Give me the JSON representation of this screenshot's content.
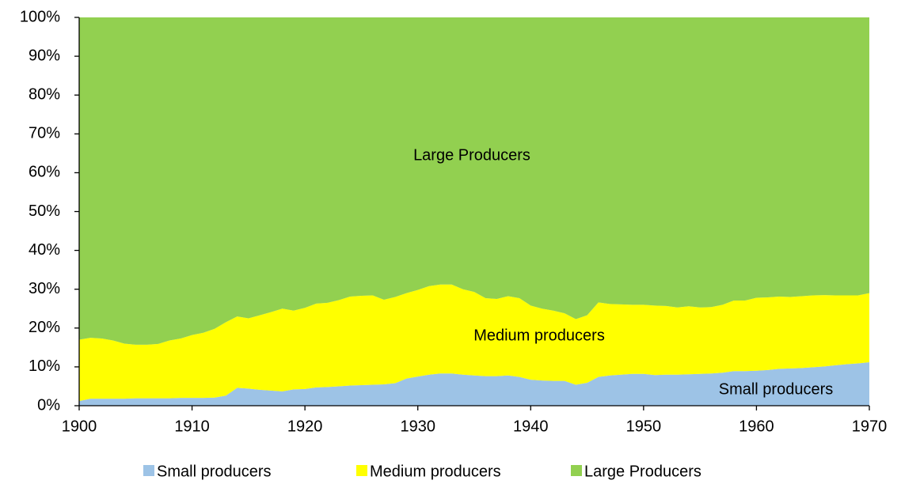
{
  "chart_data": {
    "type": "stacked_area",
    "x": [
      1900,
      1901,
      1902,
      1903,
      1904,
      1905,
      1906,
      1907,
      1908,
      1909,
      1910,
      1911,
      1912,
      1913,
      1914,
      1915,
      1916,
      1917,
      1918,
      1919,
      1920,
      1921,
      1922,
      1923,
      1924,
      1925,
      1926,
      1927,
      1928,
      1929,
      1930,
      1931,
      1932,
      1933,
      1934,
      1935,
      1936,
      1937,
      1938,
      1939,
      1940,
      1941,
      1942,
      1943,
      1944,
      1945,
      1946,
      1947,
      1948,
      1949,
      1950,
      1951,
      1952,
      1953,
      1954,
      1955,
      1956,
      1957,
      1958,
      1959,
      1960,
      1961,
      1962,
      1963,
      1964,
      1965,
      1966,
      1967,
      1968,
      1969,
      1970
    ],
    "series": [
      {
        "name": "Small producers",
        "color": "#9dc3e6",
        "values": [
          1.2,
          1.8,
          1.8,
          1.8,
          1.8,
          1.9,
          1.9,
          1.9,
          1.9,
          2,
          2,
          2,
          2.1,
          2.6,
          4.6,
          4.4,
          4.1,
          3.9,
          3.7,
          4.2,
          4.3,
          4.7,
          4.8,
          5,
          5.2,
          5.3,
          5.4,
          5.5,
          5.8,
          7,
          7.5,
          8,
          8.3,
          8.3,
          8,
          7.8,
          7.6,
          7.6,
          7.8,
          7.4,
          6.7,
          6.5,
          6.4,
          6.4,
          5.4,
          5.9,
          7.4,
          7.8,
          8,
          8.2,
          8.2,
          7.9,
          8,
          8,
          8.1,
          8.2,
          8.3,
          8.5,
          8.9,
          8.9,
          9,
          9.2,
          9.5,
          9.6,
          9.7,
          9.9,
          10.1,
          10.4,
          10.7,
          10.9,
          11.2
        ]
      },
      {
        "name": "Medium producers",
        "color": "#ffff00",
        "values": [
          15.8,
          15.7,
          15.5,
          15.0,
          14.2,
          13.8,
          13.8,
          14.0,
          14.9,
          15.3,
          16.2,
          16.8,
          17.7,
          18.9,
          18.4,
          18.1,
          19.2,
          20.2,
          21.3,
          20.3,
          20.9,
          21.6,
          21.7,
          22.2,
          22.9,
          23.0,
          23.0,
          21.8,
          22.2,
          22.0,
          22.3,
          22.8,
          22.9,
          22.9,
          22.0,
          21.5,
          20.1,
          19.9,
          20.4,
          20.3,
          19.1,
          18.5,
          18.1,
          17.4,
          16.9,
          17.4,
          19.2,
          18.4,
          18.1,
          17.8,
          17.8,
          17.9,
          17.7,
          17.3,
          17.5,
          17.1,
          17.1,
          17.5,
          18.2,
          18.2,
          18.8,
          18.7,
          18.6,
          18.4,
          18.5,
          18.5,
          18.4,
          18.0,
          17.7,
          17.5,
          17.8
        ]
      },
      {
        "name": "Large Producers",
        "color": "#92d050",
        "values": [
          83,
          82.5,
          82.7,
          83.2,
          84,
          84.3,
          84.3,
          84.1,
          83.2,
          82.7,
          81.8,
          81.2,
          80.2,
          78.5,
          77,
          77.5,
          76.7,
          75.9,
          75,
          75.5,
          74.8,
          73.7,
          73.5,
          72.8,
          71.9,
          71.7,
          71.6,
          72.7,
          72,
          71,
          70.2,
          69.2,
          68.8,
          68.8,
          70,
          70.7,
          72.3,
          72.5,
          71.8,
          72.3,
          74.2,
          75,
          75.5,
          76.2,
          77.7,
          76.7,
          73.4,
          73.8,
          73.9,
          74,
          74,
          74.2,
          74.3,
          74.7,
          74.4,
          74.7,
          74.6,
          74,
          72.9,
          72.9,
          72.2,
          72.1,
          71.9,
          72,
          71.8,
          71.6,
          71.5,
          71.6,
          71.6,
          71.6,
          71
        ]
      }
    ],
    "annotations": [
      "Large Producers",
      "Medium producers",
      "Small producers"
    ],
    "xlim": [
      1900,
      1970
    ],
    "xticks": [
      1900,
      1910,
      1920,
      1930,
      1940,
      1950,
      1960,
      1970
    ],
    "ylim": [
      0,
      100
    ],
    "yticks": [
      {
        "value": 0,
        "label": "0%"
      },
      {
        "value": 10,
        "label": "10%"
      },
      {
        "value": 20,
        "label": "20%"
      },
      {
        "value": 30,
        "label": "30%"
      },
      {
        "value": 40,
        "label": "40%"
      },
      {
        "value": 50,
        "label": "50%"
      },
      {
        "value": 60,
        "label": "60%"
      },
      {
        "value": 70,
        "label": "70%"
      },
      {
        "value": 80,
        "label": "80%"
      },
      {
        "value": 90,
        "label": "90%"
      },
      {
        "value": 100,
        "label": "100%"
      }
    ],
    "legend": "bottom"
  }
}
